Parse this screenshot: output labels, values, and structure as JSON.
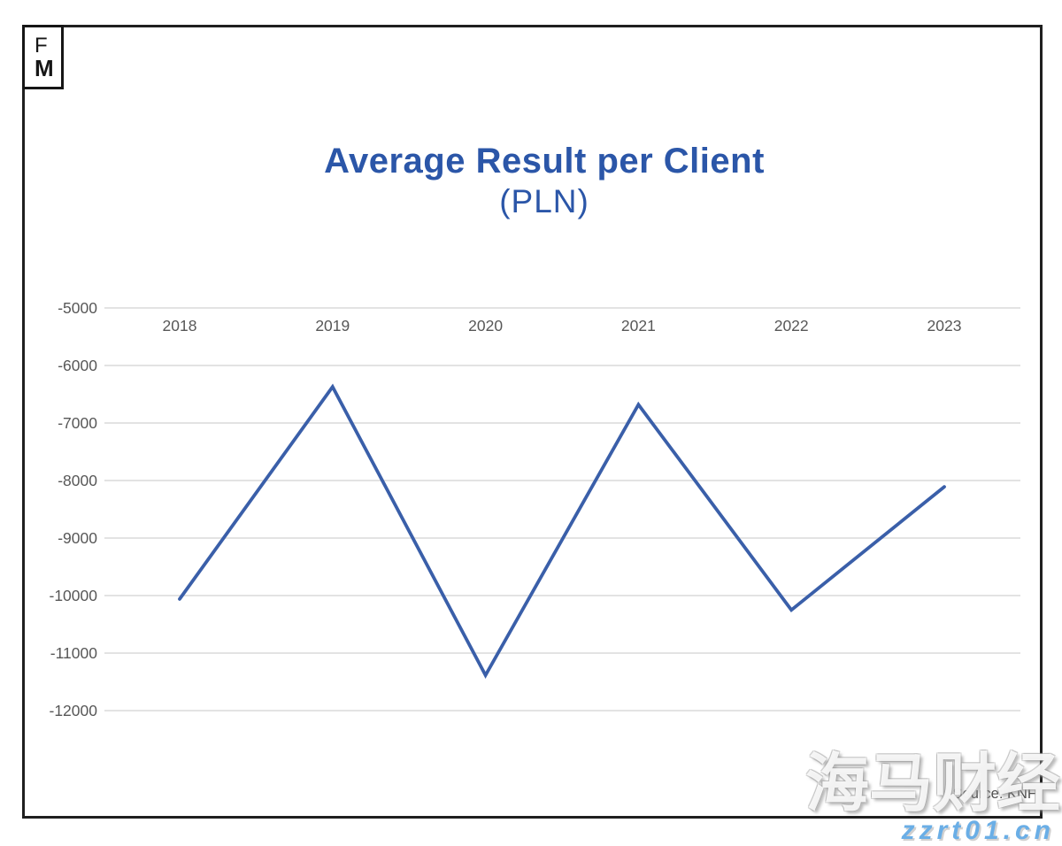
{
  "logo": {
    "line1": "F",
    "line2": "M"
  },
  "title": {
    "main": "Average Result per Client",
    "sub": "(PLN)"
  },
  "source_label": "Source: KNF",
  "watermark": {
    "cjk": "海马财经",
    "url": "zzrt01.cn"
  },
  "colors": {
    "title_blue": "#2b56a8",
    "line_blue": "#3a5fa9",
    "gridline": "#e3e3e3",
    "axis_text": "#575757",
    "frame": "#1f1f1f",
    "watermark_url_blue": "#6aaee6"
  },
  "chart_data": {
    "type": "line",
    "title": "Average Result per Client (PLN)",
    "categories": [
      "2018",
      "2019",
      "2020",
      "2021",
      "2022",
      "2023"
    ],
    "values": [
      -10060,
      -6370,
      -11385,
      -6680,
      -10250,
      -8110
    ],
    "yticks": [
      -5000,
      -6000,
      -7000,
      -8000,
      -9000,
      -10000,
      -11000,
      -12000
    ],
    "ylim": [
      -12000,
      -5000
    ],
    "xlabel": "",
    "ylabel": "",
    "grid": true,
    "legend": "none"
  }
}
